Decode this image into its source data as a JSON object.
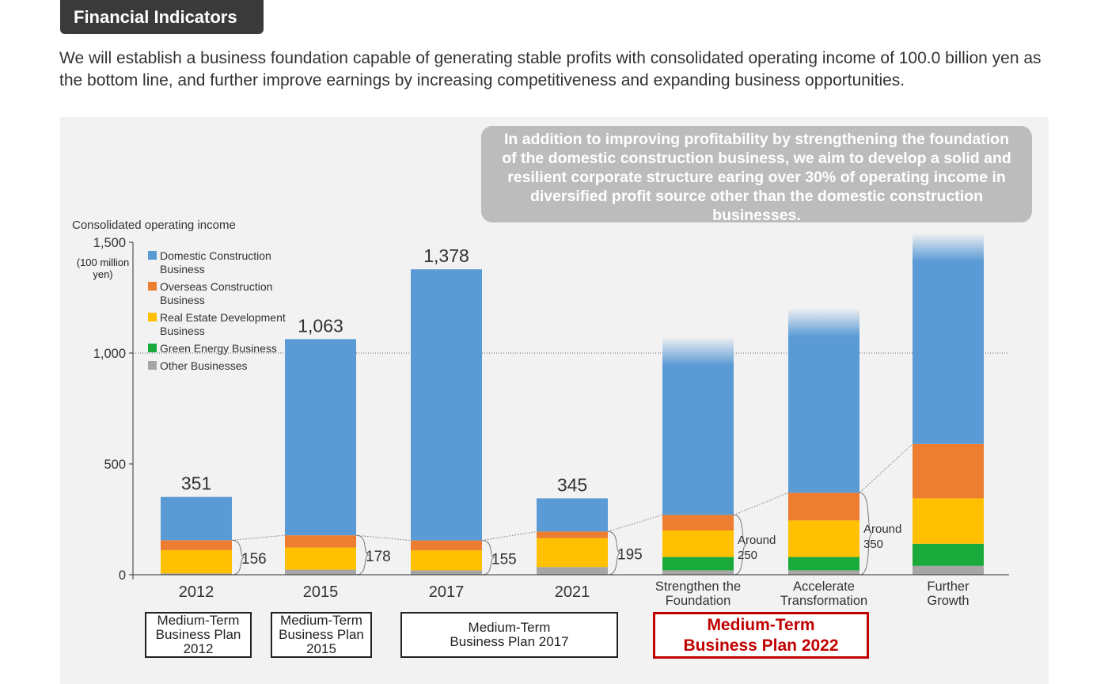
{
  "header": {
    "title": "Financial Indicators"
  },
  "intro": "We will establish a business foundation capable of generating stable profits with consolidated operating income of 100.0 billion yen as the bottom line, and further improve earnings by increasing competitiveness and expanding business opportunities.",
  "callout": "In addition to improving profitability by strengthening the foundation of the domestic construction business, we aim to develop a solid and resilient corporate structure earing over 30% of operating income in diversified profit source other than the domestic construction businesses.",
  "plans": [
    {
      "label": "Medium-Term Business Plan 2012",
      "style": "normal"
    },
    {
      "label": "Medium-Term Business Plan 2015",
      "style": "normal"
    },
    {
      "label": "Medium-Term Business Plan 2017",
      "style": "normal"
    },
    {
      "label": "Medium-Term Business Plan 2022",
      "style": "highlight"
    }
  ],
  "colors": {
    "domestic": "#5b9bd5",
    "overseas": "#ed7d31",
    "real_estate": "#ffc000",
    "green": "#1aaa3c",
    "other": "#a6a6a6",
    "plan_highlight": "#c00000"
  },
  "chart_data": {
    "type": "bar",
    "stacked": true,
    "ylabel": "Consolidated operating income",
    "yunit": "(100 million yen)",
    "ylim": [
      0,
      1500
    ],
    "yticks": [
      "0",
      "500",
      "1,000",
      "1,500"
    ],
    "yticks_values": [
      0,
      500,
      1000,
      1500
    ],
    "reference_line": 1000,
    "legend_position": "top-left",
    "categories": [
      "2012",
      "2015",
      "2017",
      "2021",
      "Strengthen the Foundation",
      "Accelerate Transformation",
      "Further Growth"
    ],
    "series": [
      {
        "name": "Domestic Construction Business",
        "color": "#5b9bd5",
        "values": [
          195,
          885,
          1223,
          150,
          800,
          830,
          950
        ]
      },
      {
        "name": "Overseas Construction Business",
        "color": "#ed7d31",
        "values": [
          45,
          55,
          45,
          30,
          70,
          125,
          245
        ]
      },
      {
        "name": "Real Estate Development Business",
        "color": "#ffc000",
        "values": [
          105,
          100,
          90,
          130,
          120,
          165,
          205
        ]
      },
      {
        "name": "Green Energy Business",
        "color": "#1aaa3c",
        "values": [
          0,
          0,
          0,
          0,
          60,
          60,
          100
        ]
      },
      {
        "name": "Other Businesses",
        "color": "#a6a6a6",
        "values": [
          6,
          23,
          20,
          35,
          20,
          20,
          40
        ]
      }
    ],
    "totals": [
      "351",
      "1,063",
      "1,378",
      "345",
      "",
      "",
      ""
    ],
    "non_domestic": [
      "156",
      "178",
      "155",
      "195",
      "Around 250",
      "Around 350",
      ""
    ],
    "faded_top": [
      false,
      false,
      false,
      false,
      true,
      true,
      true
    ]
  }
}
